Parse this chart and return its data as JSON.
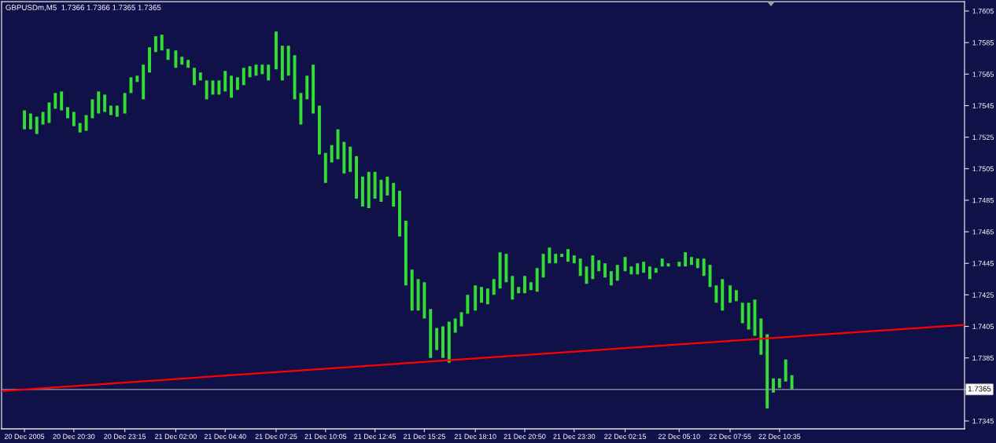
{
  "chart_data": {
    "type": "bar",
    "title": "GBPUSDm,M5  1.7366 1.7366 1.7365 1.7365",
    "series": [
      {
        "color": "#33dd33",
        "x": [
          "2005-12-20T17:50",
          "2005-12-20T18:10",
          "2005-12-20T18:30",
          "2005-12-20T18:50",
          "2005-12-20T19:10",
          "2005-12-20T19:30",
          "2005-12-20T19:50",
          "2005-12-20T20:10",
          "2005-12-20T20:30",
          "2005-12-20T20:50",
          "2005-12-20T21:10",
          "2005-12-20T21:30",
          "2005-12-20T21:50",
          "2005-12-20T22:10",
          "2005-12-20T22:30",
          "2005-12-20T22:50",
          "2005-12-20T23:15",
          "2005-12-20T23:35",
          "2005-12-20T23:55",
          "2005-12-21T00:15",
          "2005-12-21T00:35",
          "2005-12-21T00:55",
          "2005-12-21T01:15",
          "2005-12-21T01:35",
          "2005-12-21T02:00",
          "2005-12-21T02:20",
          "2005-12-21T02:40",
          "2005-12-21T03:00",
          "2005-12-21T03:20",
          "2005-12-21T03:40",
          "2005-12-21T04:00",
          "2005-12-21T04:20",
          "2005-12-21T04:40",
          "2005-12-21T05:00",
          "2005-12-21T05:20",
          "2005-12-21T05:40",
          "2005-12-21T06:00",
          "2005-12-21T06:20",
          "2005-12-21T06:40",
          "2005-12-21T07:00",
          "2005-12-21T07:25",
          "2005-12-21T07:45",
          "2005-12-21T08:05",
          "2005-12-21T08:25",
          "2005-12-21T08:45",
          "2005-12-21T09:05",
          "2005-12-21T09:25",
          "2005-12-21T09:45",
          "2005-12-21T10:05",
          "2005-12-21T10:25",
          "2005-12-21T10:45",
          "2005-12-21T11:05",
          "2005-12-21T11:25",
          "2005-12-21T11:45",
          "2005-12-21T12:05",
          "2005-12-21T12:25",
          "2005-12-21T12:45",
          "2005-12-21T13:05",
          "2005-12-21T13:25",
          "2005-12-21T13:45",
          "2005-12-21T14:05",
          "2005-12-21T14:25",
          "2005-12-21T14:45",
          "2005-12-21T15:05",
          "2005-12-21T15:25",
          "2005-12-21T15:45",
          "2005-12-21T16:05",
          "2005-12-21T16:25",
          "2005-12-21T16:45",
          "2005-12-21T17:05",
          "2005-12-21T17:25",
          "2005-12-21T17:45",
          "2005-12-21T18:10",
          "2005-12-21T18:30",
          "2005-12-21T18:50",
          "2005-12-21T19:10",
          "2005-12-21T19:30",
          "2005-12-21T19:50",
          "2005-12-21T20:10",
          "2005-12-21T20:30",
          "2005-12-21T20:50",
          "2005-12-21T21:10",
          "2005-12-21T21:30",
          "2005-12-21T21:50",
          "2005-12-21T22:10",
          "2005-12-21T22:30",
          "2005-12-21T22:50",
          "2005-12-21T23:10",
          "2005-12-21T23:30",
          "2005-12-21T23:50",
          "2005-12-22T00:10",
          "2005-12-22T00:30",
          "2005-12-22T00:50",
          "2005-12-22T01:10",
          "2005-12-22T01:30",
          "2005-12-22T01:50",
          "2005-12-22T02:15",
          "2005-12-22T02:35",
          "2005-12-22T02:55",
          "2005-12-22T03:15",
          "2005-12-22T03:35",
          "2005-12-22T03:55",
          "2005-12-22T04:15",
          "2005-12-22T04:35",
          "2005-12-22T05:10",
          "2005-12-22T05:30",
          "2005-12-22T05:50",
          "2005-12-22T06:10",
          "2005-12-22T06:30",
          "2005-12-22T06:50",
          "2005-12-22T07:10",
          "2005-12-22T07:30",
          "2005-12-22T07:55",
          "2005-12-22T08:15",
          "2005-12-22T08:35",
          "2005-12-22T08:55",
          "2005-12-22T09:15",
          "2005-12-22T09:35",
          "2005-12-22T09:55",
          "2005-12-22T10:15",
          "2005-12-22T10:35",
          "2005-12-22T10:55",
          "2005-12-22T11:15"
        ],
        "base": [
          1.753,
          1.753,
          1.7527,
          1.7533,
          1.7534,
          1.7543,
          1.7542,
          1.7537,
          1.7532,
          1.7528,
          1.7529,
          1.7537,
          1.754,
          1.7541,
          1.7539,
          1.7538,
          1.754,
          1.7553,
          1.756,
          1.7549,
          1.7566,
          1.7579,
          1.758,
          1.7574,
          1.7569,
          1.7571,
          1.7569,
          1.7558,
          1.7561,
          1.7549,
          1.7552,
          1.7552,
          1.7554,
          1.755,
          1.7555,
          1.7558,
          1.7563,
          1.7564,
          1.7565,
          1.7561,
          1.7568,
          1.7561,
          1.7564,
          1.7549,
          1.7533,
          1.7549,
          1.754,
          1.7514,
          1.7496,
          1.7509,
          1.7511,
          1.7502,
          1.7503,
          1.7486,
          1.7481,
          1.748,
          1.7486,
          1.7484,
          1.7488,
          1.7481,
          1.7462,
          1.7431,
          1.7415,
          1.7415,
          1.741,
          1.7385,
          1.739,
          1.7385,
          1.7382,
          1.7401,
          1.7405,
          1.7413,
          1.7415,
          1.742,
          1.7419,
          1.7425,
          1.7429,
          1.7433,
          1.7422,
          1.7426,
          1.7426,
          1.7428,
          1.7427,
          1.7436,
          1.7445,
          1.7445,
          1.7449,
          1.7446,
          1.7445,
          1.7437,
          1.7432,
          1.7435,
          1.744,
          1.7436,
          1.7431,
          1.7434,
          1.744,
          1.7438,
          1.7438,
          1.7439,
          1.7435,
          1.7439,
          1.7443,
          1.7443,
          1.7443,
          1.7443,
          1.7444,
          1.7442,
          1.7437,
          1.743,
          1.742,
          1.7415,
          1.742,
          1.7421,
          1.7407,
          1.7403,
          1.7399,
          1.7387,
          1.7353,
          1.7363,
          1.7366,
          1.737,
          1.7365
        ],
        "values": [
          0.0012,
          0.001,
          0.0011,
          0.0008,
          0.0013,
          0.001,
          0.0012,
          0.0007,
          0.0009,
          0.0006,
          0.001,
          0.0012,
          0.0014,
          0.0011,
          0.0006,
          0.0007,
          0.0013,
          0.001,
          0.0004,
          0.0022,
          0.0016,
          0.001,
          0.001,
          0.0007,
          0.0011,
          0.0005,
          0.0005,
          0.0011,
          0.0005,
          0.0012,
          0.0009,
          0.0009,
          0.0013,
          0.0014,
          0.0008,
          0.0011,
          0.0007,
          0.0007,
          0.0006,
          0.001,
          0.0024,
          0.0022,
          0.0019,
          0.0028,
          0.002,
          0.0015,
          0.0031,
          0.0031,
          0.0019,
          0.0011,
          0.0019,
          0.002,
          0.0016,
          0.0027,
          0.0019,
          0.0023,
          0.0017,
          0.0014,
          0.0012,
          0.0015,
          0.0029,
          0.0041,
          0.0026,
          0.002,
          0.0023,
          0.0031,
          0.0014,
          0.002,
          0.0026,
          0.0009,
          0.0009,
          0.0012,
          0.0016,
          0.001,
          0.001,
          0.001,
          0.0023,
          0.0018,
          0.0015,
          0.0004,
          0.0011,
          0.0005,
          0.0015,
          0.0015,
          0.001,
          0.0006,
          0.0002,
          0.0008,
          0.0005,
          0.0011,
          0.0011,
          0.0015,
          0.0007,
          0.0009,
          0.0009,
          0.001,
          0.0009,
          0.0005,
          0.0007,
          0.0007,
          0.0008,
          0.0003,
          0.0005,
          0.0002,
          0.0003,
          0.0009,
          0.0005,
          0.0006,
          0.0011,
          0.0014,
          0.0011,
          0.002,
          0.0011,
          0.0007,
          0.0013,
          0.0017,
          0.0023,
          0.0023,
          0.0047,
          0.0009,
          0.0006,
          0.0014,
          0.0009
        ]
      },
      {
        "type": "line",
        "color": "#ff0000",
        "x": [
          "2005-12-20T16:36",
          "2005-12-22T20:34"
        ],
        "values": [
          1.7364,
          1.7406
        ]
      }
    ],
    "xlim": [
      "2005-12-20T16:36",
      "2005-12-22T20:34"
    ],
    "xticks": [
      {
        "value": "2005-12-20T17:50",
        "label": "20 Dec 2005"
      },
      {
        "value": "2005-12-20T20:30",
        "label": "20 Dec 20:30"
      },
      {
        "value": "2005-12-20T23:15",
        "label": "20 Dec 23:15"
      },
      {
        "value": "2005-12-21T02:00",
        "label": "21 Dec 02:00"
      },
      {
        "value": "2005-12-21T04:40",
        "label": "21 Dec 04:40"
      },
      {
        "value": "2005-12-21T07:25",
        "label": "21 Dec 07:25"
      },
      {
        "value": "2005-12-21T10:05",
        "label": "21 Dec 10:05"
      },
      {
        "value": "2005-12-21T12:45",
        "label": "21 Dec 12:45"
      },
      {
        "value": "2005-12-21T15:25",
        "label": "21 Dec 15:25"
      },
      {
        "value": "2005-12-21T18:10",
        "label": "21 Dec 18:10"
      },
      {
        "value": "2005-12-21T20:50",
        "label": "21 Dec 20:50"
      },
      {
        "value": "2005-12-21T23:30",
        "label": "21 Dec 23:30"
      },
      {
        "value": "2005-12-22T02:15",
        "label": "22 Dec 02:15"
      },
      {
        "value": "2005-12-22T05:10",
        "label": "22 Dec 05:10"
      },
      {
        "value": "2005-12-22T07:55",
        "label": "22 Dec 07:55"
      },
      {
        "value": "2005-12-22T10:35",
        "label": "22 Dec 10:35"
      }
    ],
    "ylim": [
      1.734,
      1.7611
    ],
    "yticks": [
      1.7345,
      {
        "value": 1.7365,
        "label": null
      },
      1.7385,
      1.7405,
      1.7425,
      1.7445,
      1.7465,
      1.7485,
      1.7505,
      1.7525,
      1.7545,
      1.7565,
      1.7585,
      1.7605
    ],
    "ref_lines": [
      {
        "axis": "y",
        "value": 1.7365,
        "label": "1.7365",
        "color": "#9a9aa6"
      }
    ]
  }
}
